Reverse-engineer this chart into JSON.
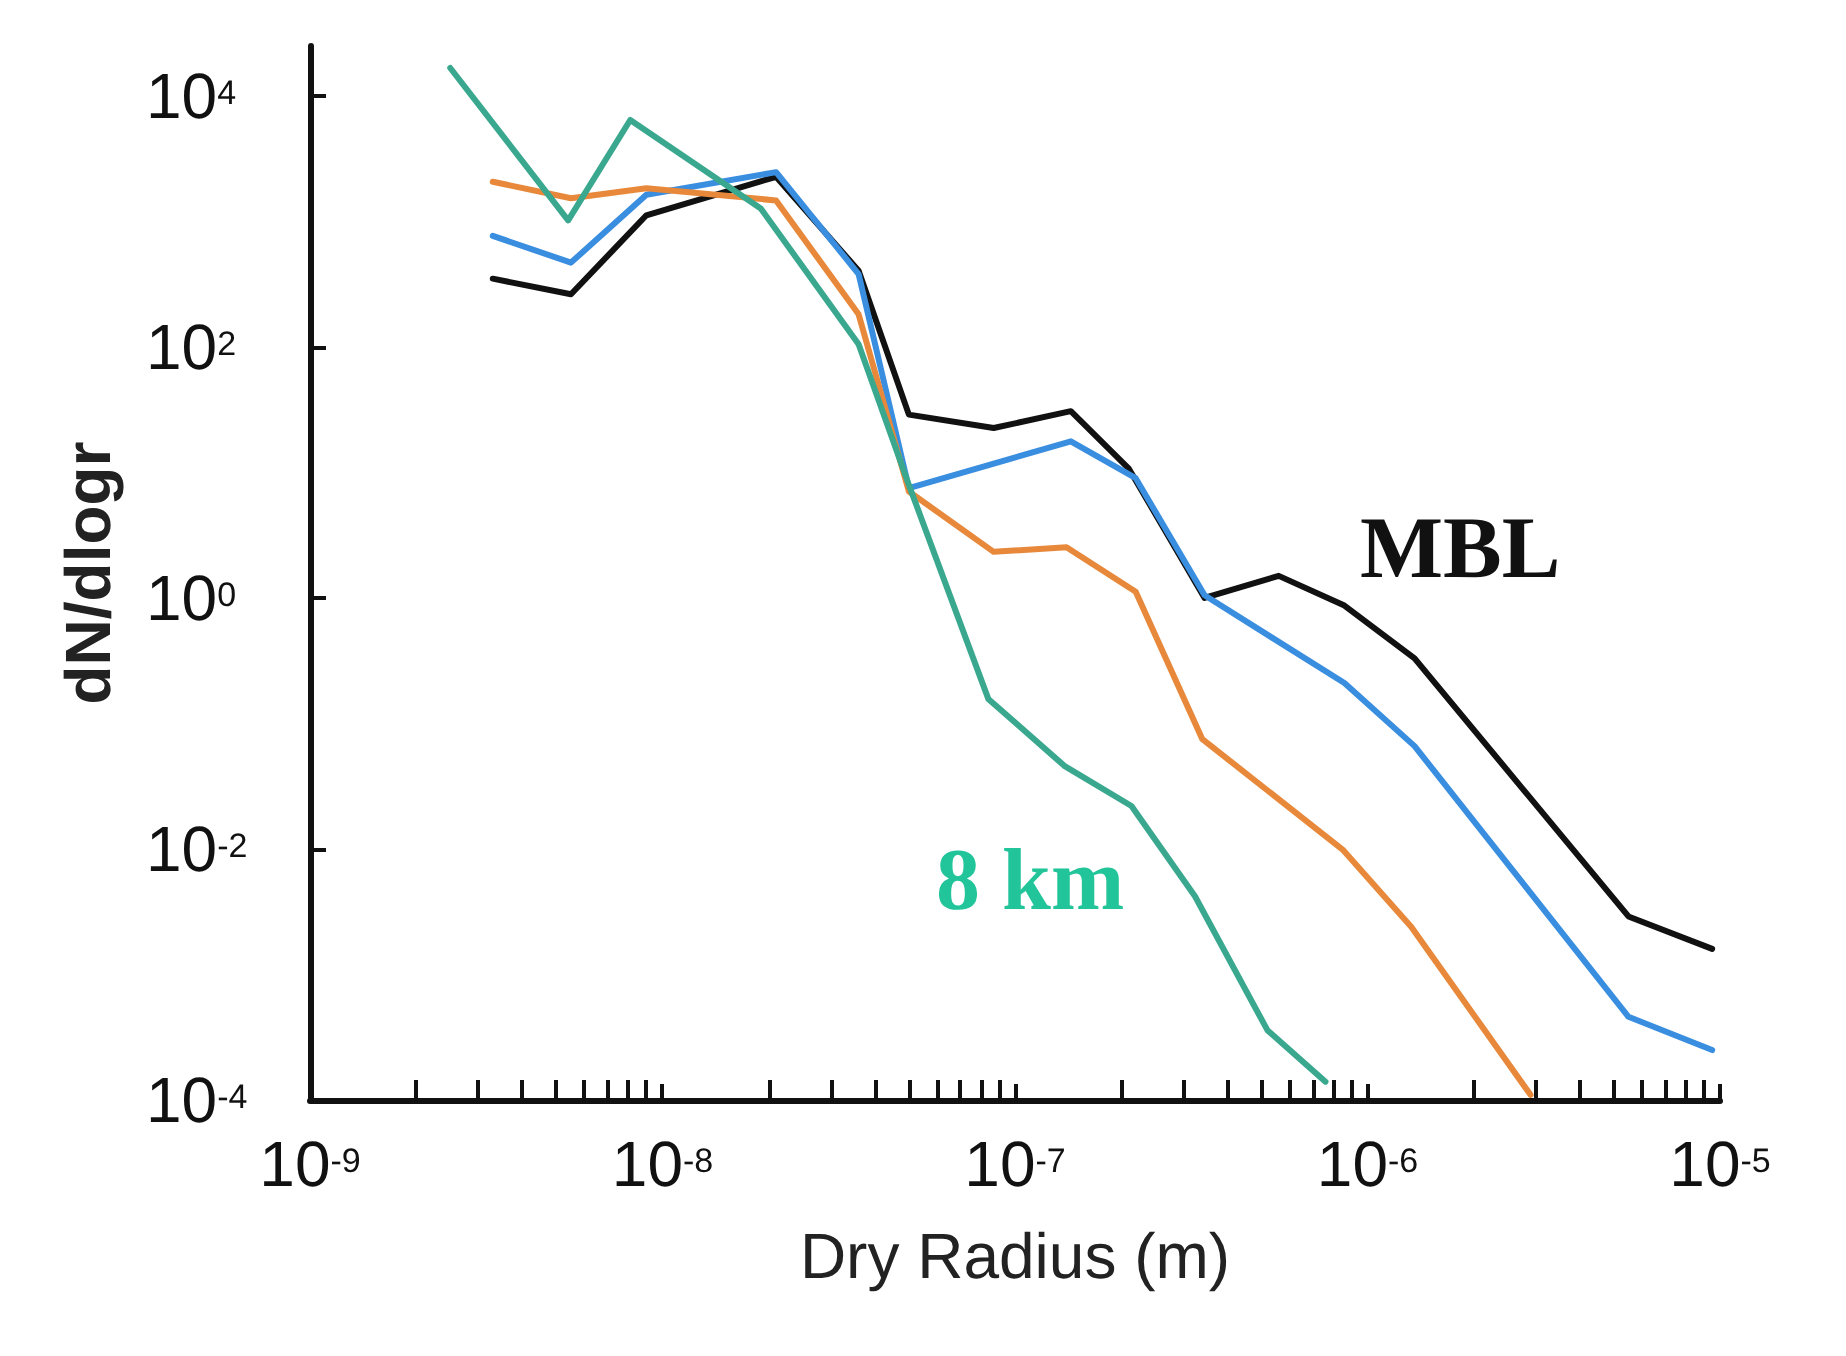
{
  "chart_data": {
    "type": "line",
    "xlabel": "Dry Radius (m)",
    "ylabel": "dN/dlogr",
    "log": "xy",
    "grid": false,
    "legend": false,
    "marker": "none",
    "line_style": "solid",
    "xlim": [
      1e-09,
      1e-05
    ],
    "ylim": [
      0.0001,
      25000
    ],
    "xticks": [
      {
        "value": 1e-09,
        "label": "10$^{-9}$"
      },
      {
        "value": 1e-08,
        "label": "10$^{-8}$"
      },
      {
        "value": 1e-07,
        "label": "10$^{-7}$"
      },
      {
        "value": 1e-06,
        "label": "10$^{-6}$"
      },
      {
        "value": 1e-05,
        "label": "10$^{-5}$"
      }
    ],
    "yticks": [
      {
        "value": 0.0001,
        "label": "10$^{-4}$"
      },
      {
        "value": 0.01,
        "label": "10$^{-2}$"
      },
      {
        "value": 1,
        "label": "10$^{0}$"
      },
      {
        "value": 100,
        "label": "10$^{2}$"
      },
      {
        "value": 10000,
        "label": "10$^{4}$"
      }
    ],
    "series": [
      {
        "name": "MBL",
        "color": "#111111",
        "x": [
          3.3e-09,
          5.5e-09,
          9e-09,
          2.1e-08,
          3.6e-08,
          5e-08,
          8.7e-08,
          1.44e-07,
          2.1e-07,
          3.45e-07,
          5.6e-07,
          8.6e-07,
          1.36e-06,
          5.5e-06,
          9.5e-06
        ],
        "values": [
          350,
          263,
          1120,
          2270,
          405,
          28.9,
          22.6,
          30.8,
          10.8,
          1.0,
          1.5,
          0.87,
          0.33,
          0.0029,
          0.0016
        ]
      },
      {
        "color": "#3a8ee0",
        "x": [
          3.3e-09,
          5.5e-09,
          9e-09,
          2.1e-08,
          3.6e-08,
          5e-08,
          1.44e-07,
          2.2e-07,
          3.45e-07,
          8.6e-07,
          1.36e-06,
          5.5e-06,
          9.5e-06
        ],
        "values": [
          767,
          470,
          1630,
          2470,
          381,
          7.5,
          17.7,
          9.0,
          1.05,
          0.21,
          0.066,
          0.00046,
          0.00025
        ]
      },
      {
        "color": "#e8883a",
        "x": [
          3.3e-09,
          5.5e-09,
          9e-09,
          2.1e-08,
          3.6e-08,
          5e-08,
          8.7e-08,
          1.4e-07,
          2.2e-07,
          3.4e-07,
          8.5e-07,
          1.33e-06,
          2.9e-06
        ],
        "values": [
          2070,
          1530,
          1840,
          1470,
          182,
          7.05,
          2.33,
          2.54,
          1.12,
          0.075,
          0.0099,
          0.0024,
          0.00011
        ]
      },
      {
        "name": "8 km",
        "color": "#3aa88e",
        "x": [
          2.5e-09,
          5.4e-09,
          8.1e-09,
          1.9e-08,
          3.6e-08,
          5e-08,
          8.4e-08,
          1.38e-07,
          2.14e-07,
          3.24e-07,
          5.2e-07,
          7.6e-07
        ],
        "values": [
          16700,
          1020,
          6430,
          1270,
          105,
          7.96,
          0.157,
          0.046,
          0.022,
          0.0042,
          0.00036,
          0.00014
        ]
      }
    ]
  }
}
